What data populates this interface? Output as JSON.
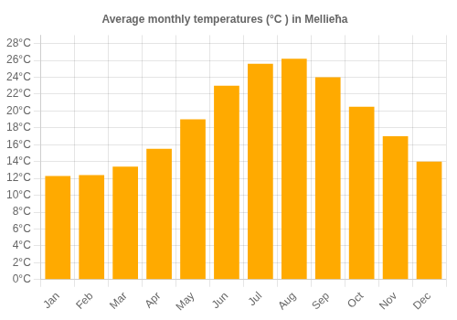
{
  "chart_data": {
    "type": "bar",
    "title": "Average monthly temperatures (°C ) in Mellieħa",
    "categories": [
      "Jan",
      "Feb",
      "Mar",
      "Apr",
      "May",
      "Jun",
      "Jul",
      "Aug",
      "Sep",
      "Oct",
      "Nov",
      "Dec"
    ],
    "values": [
      12.3,
      12.4,
      13.4,
      15.5,
      19.0,
      23.0,
      25.6,
      26.2,
      24.0,
      20.5,
      17.0,
      14.0
    ],
    "color": "#FFAA00",
    "ylim": [
      0,
      29
    ],
    "yticks": [
      {
        "value": 0,
        "label": "0°C"
      },
      {
        "value": 2,
        "label": "2°C"
      },
      {
        "value": 4,
        "label": "4°C"
      },
      {
        "value": 6,
        "label": "6°C"
      },
      {
        "value": 8,
        "label": "8°C"
      },
      {
        "value": 10,
        "label": "10°C"
      },
      {
        "value": 12,
        "label": "12°C"
      },
      {
        "value": 14,
        "label": "14°C"
      },
      {
        "value": 16,
        "label": "16°C"
      },
      {
        "value": 18,
        "label": "18°C"
      },
      {
        "value": 20,
        "label": "20°C"
      },
      {
        "value": 22,
        "label": "22°C"
      },
      {
        "value": 24,
        "label": "24°C"
      },
      {
        "value": 26,
        "label": "26°C"
      },
      {
        "value": 28,
        "label": "28°C"
      }
    ],
    "grid": true
  }
}
